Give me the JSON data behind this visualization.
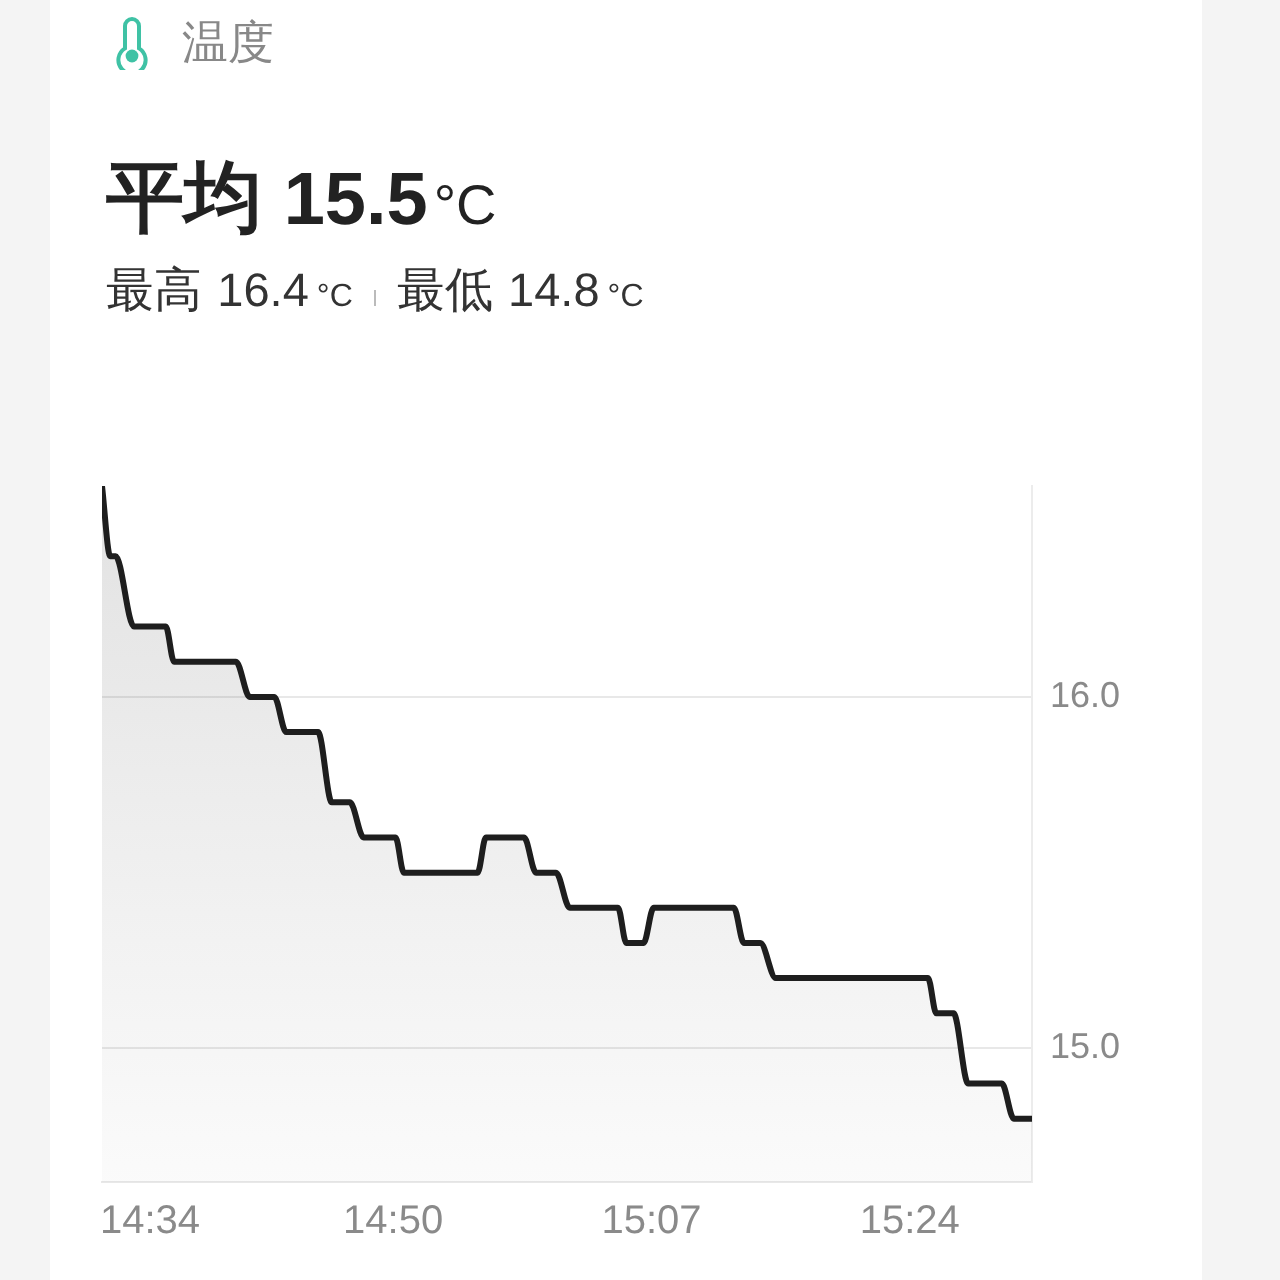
{
  "chart_data": {
    "type": "area",
    "title": "温度",
    "subtitle": "平均 15.5°C",
    "annotations": [
      "最高 16.4°C",
      "最低 14.8°C"
    ],
    "x": [
      14.514,
      14.523,
      14.529,
      14.549,
      14.584,
      14.593,
      14.661,
      14.676,
      14.703,
      14.716,
      14.751,
      14.766,
      14.786,
      14.801,
      14.836,
      14.845,
      14.926,
      14.935,
      14.977,
      14.99,
      15.012,
      15.027,
      15.08,
      15.089,
      15.108,
      15.119,
      15.207,
      15.218,
      15.236,
      15.253,
      15.42,
      15.429,
      15.448,
      15.464,
      15.501,
      15.514,
      15.534
    ],
    "values": [
      16.6,
      16.4,
      16.4,
      16.2,
      16.2,
      16.1,
      16.1,
      16.0,
      16.0,
      15.9,
      15.9,
      15.7,
      15.7,
      15.6,
      15.6,
      15.5,
      15.5,
      15.6,
      15.6,
      15.5,
      15.5,
      15.4,
      15.4,
      15.3,
      15.3,
      15.4,
      15.4,
      15.3,
      15.3,
      15.2,
      15.2,
      15.1,
      15.1,
      14.9,
      14.9,
      14.8,
      14.8
    ],
    "color": "#1e1e1e",
    "xlim": [
      14.514,
      15.534
    ],
    "xticks": [
      {
        "value": 14.5667,
        "label": "14:34"
      },
      {
        "value": 14.8333,
        "label": "14:50"
      },
      {
        "value": 15.1167,
        "label": "15:07"
      },
      {
        "value": 15.4,
        "label": "15:24"
      }
    ],
    "ylim": [
      14.62,
      16.6
    ],
    "yticks": [
      {
        "value": 15,
        "label": "15.0"
      },
      {
        "value": 16,
        "label": "16.0"
      }
    ],
    "grid": "y",
    "marker": "none"
  }
}
